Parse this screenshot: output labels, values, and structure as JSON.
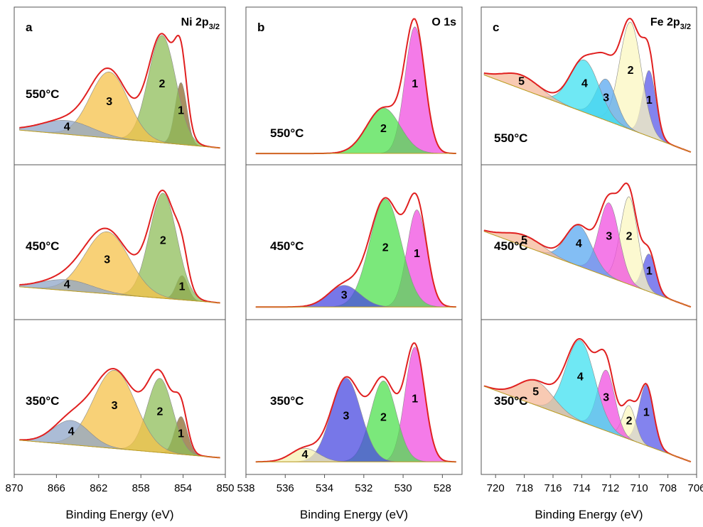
{
  "chart_data": [
    {
      "type": "area",
      "panel_letter": "a",
      "title": "Ni 2p",
      "title_sub": "3/2",
      "xlabel": "Binding Energy (eV)",
      "xlim": [
        870,
        850
      ],
      "xticks": [
        "870",
        "866",
        "862",
        "858",
        "854",
        "850"
      ],
      "rows": [
        {
          "temperature": "550°C",
          "ymax": 1.0,
          "baseline": [
            [
              869.5,
              0.18
            ],
            [
              850.5,
              0.05
            ]
          ],
          "peaks": [
            {
              "label": "1",
              "center": 854.2,
              "height": 0.45,
              "sigma": 0.55,
              "color": "#8B6A2E"
            },
            {
              "label": "2",
              "center": 856.0,
              "height": 0.78,
              "sigma": 1.3,
              "color": "#8FBD5A"
            },
            {
              "label": "3",
              "center": 861.0,
              "height": 0.48,
              "sigma": 1.8,
              "color": "#F5C24A"
            },
            {
              "label": "4",
              "center": 865.0,
              "height": 0.1,
              "sigma": 2.4,
              "color": "#8FA6C8"
            }
          ]
        },
        {
          "temperature": "450°C",
          "ymax": 1.0,
          "baseline": [
            [
              869.5,
              0.17
            ],
            [
              850.5,
              0.05
            ]
          ],
          "peaks": [
            {
              "label": "1",
              "center": 854.1,
              "height": 0.18,
              "sigma": 0.55,
              "color": "#8B6A2E"
            },
            {
              "label": "2",
              "center": 855.9,
              "height": 0.78,
              "sigma": 1.3,
              "color": "#8FBD5A"
            },
            {
              "label": "3",
              "center": 861.2,
              "height": 0.46,
              "sigma": 2.1,
              "color": "#F5C24A"
            },
            {
              "label": "4",
              "center": 865.0,
              "height": 0.08,
              "sigma": 2.4,
              "color": "#8FA6C8"
            }
          ]
        },
        {
          "temperature": "350°C",
          "ymax": 1.0,
          "baseline": [
            [
              869.5,
              0.18
            ],
            [
              850.5,
              0.05
            ]
          ],
          "peaks": [
            {
              "label": "1",
              "center": 854.2,
              "height": 0.28,
              "sigma": 0.6,
              "color": "#8B6A2E"
            },
            {
              "label": "2",
              "center": 856.2,
              "height": 0.55,
              "sigma": 1.2,
              "color": "#8FBD5A"
            },
            {
              "label": "3",
              "center": 860.5,
              "height": 0.58,
              "sigma": 2.0,
              "color": "#F5C24A"
            },
            {
              "label": "4",
              "center": 864.6,
              "height": 0.18,
              "sigma": 1.7,
              "color": "#8FA6C8"
            }
          ]
        }
      ]
    },
    {
      "type": "area",
      "panel_letter": "b",
      "title": "O 1s",
      "title_sub": "",
      "xlabel": "Binding Energy (eV)",
      "xlim": [
        538,
        527
      ],
      "xticks": [
        "538",
        "536",
        "534",
        "532",
        "530",
        "528"
      ],
      "rows": [
        {
          "temperature": "550°C",
          "ymax": 1.0,
          "baseline": [
            [
              537.5,
              0.01
            ],
            [
              527.3,
              0.01
            ]
          ],
          "peaks": [
            {
              "label": "1",
              "center": 529.4,
              "height": 0.92,
              "sigma": 0.5,
              "color": "#F04FE0"
            },
            {
              "label": "2",
              "center": 531.0,
              "height": 0.33,
              "sigma": 0.85,
              "color": "#4FE04F"
            }
          ]
        },
        {
          "temperature": "450°C",
          "ymax": 1.0,
          "baseline": [
            [
              537.5,
              0.02
            ],
            [
              527.3,
              0.02
            ]
          ],
          "peaks": [
            {
              "label": "1",
              "center": 529.3,
              "height": 0.72,
              "sigma": 0.5,
              "color": "#F04FE0"
            },
            {
              "label": "2",
              "center": 530.9,
              "height": 0.8,
              "sigma": 0.8,
              "color": "#4FE04F"
            },
            {
              "label": "3",
              "center": 533.0,
              "height": 0.16,
              "sigma": 0.8,
              "color": "#4A4AE0"
            }
          ]
        },
        {
          "temperature": "350°C",
          "ymax": 1.0,
          "baseline": [
            [
              537.5,
              0.02
            ],
            [
              527.3,
              0.02
            ]
          ],
          "peaks": [
            {
              "label": "1",
              "center": 529.4,
              "height": 0.85,
              "sigma": 0.5,
              "color": "#F04FE0"
            },
            {
              "label": "2",
              "center": 531.0,
              "height": 0.6,
              "sigma": 0.65,
              "color": "#4FE04F"
            },
            {
              "label": "3",
              "center": 532.9,
              "height": 0.62,
              "sigma": 0.75,
              "color": "#4A4AE0"
            },
            {
              "label": "4",
              "center": 535.0,
              "height": 0.1,
              "sigma": 0.7,
              "color": "#F5F0B0"
            }
          ]
        }
      ]
    },
    {
      "type": "area",
      "panel_letter": "c",
      "title": "Fe 2p",
      "title_sub": "3/2",
      "xlabel": "Binding Energy (eV)",
      "xlim": [
        721,
        706
      ],
      "xticks": [
        "720",
        "718",
        "716",
        "714",
        "712",
        "710",
        "708",
        "706"
      ],
      "rows": [
        {
          "temperature": "550°C",
          "ymax": 1.0,
          "baseline": [
            [
              720.8,
              0.58
            ],
            [
              706.4,
              0.02
            ]
          ],
          "peaks": [
            {
              "label": "1",
              "center": 709.3,
              "height": 0.48,
              "sigma": 0.45,
              "color": "#5A5AE8"
            },
            {
              "label": "2",
              "center": 710.6,
              "height": 0.78,
              "sigma": 0.75,
              "color": "#FBF7C0"
            },
            {
              "label": "3",
              "center": 712.3,
              "height": 0.3,
              "sigma": 0.7,
              "color": "#5AA8F0"
            },
            {
              "label": "4",
              "center": 713.8,
              "height": 0.38,
              "sigma": 1.0,
              "color": "#3FE0F0"
            },
            {
              "label": "5",
              "center": 718.2,
              "height": 0.1,
              "sigma": 1.3,
              "color": "#F5B89A"
            }
          ]
        },
        {
          "temperature": "450°C",
          "ymax": 1.0,
          "baseline": [
            [
              720.8,
              0.58
            ],
            [
              706.4,
              0.02
            ]
          ],
          "peaks": [
            {
              "label": "1",
              "center": 709.3,
              "height": 0.28,
              "sigma": 0.45,
              "color": "#5A5AE8"
            },
            {
              "label": "2",
              "center": 710.7,
              "height": 0.65,
              "sigma": 0.6,
              "color": "#FBF7C0"
            },
            {
              "label": "3",
              "center": 712.1,
              "height": 0.55,
              "sigma": 0.7,
              "color": "#F04FE0"
            },
            {
              "label": "4",
              "center": 714.2,
              "height": 0.3,
              "sigma": 0.9,
              "color": "#5AA8F0"
            },
            {
              "label": "5",
              "center": 718.0,
              "height": 0.08,
              "sigma": 1.3,
              "color": "#F5B89A"
            }
          ]
        },
        {
          "temperature": "350°C",
          "ymax": 1.0,
          "baseline": [
            [
              720.8,
              0.58
            ],
            [
              706.4,
              0.02
            ]
          ],
          "peaks": [
            {
              "label": "1",
              "center": 709.5,
              "height": 0.45,
              "sigma": 0.5,
              "color": "#5A5AE8"
            },
            {
              "label": "2",
              "center": 710.7,
              "height": 0.25,
              "sigma": 0.45,
              "color": "#FBF7C0"
            },
            {
              "label": "3",
              "center": 712.3,
              "height": 0.45,
              "sigma": 0.6,
              "color": "#F04FE0"
            },
            {
              "label": "4",
              "center": 714.1,
              "height": 0.6,
              "sigma": 1.0,
              "color": "#3FE0F0"
            },
            {
              "label": "5",
              "center": 717.2,
              "height": 0.18,
              "sigma": 1.2,
              "color": "#F5B89A"
            }
          ]
        }
      ]
    }
  ]
}
